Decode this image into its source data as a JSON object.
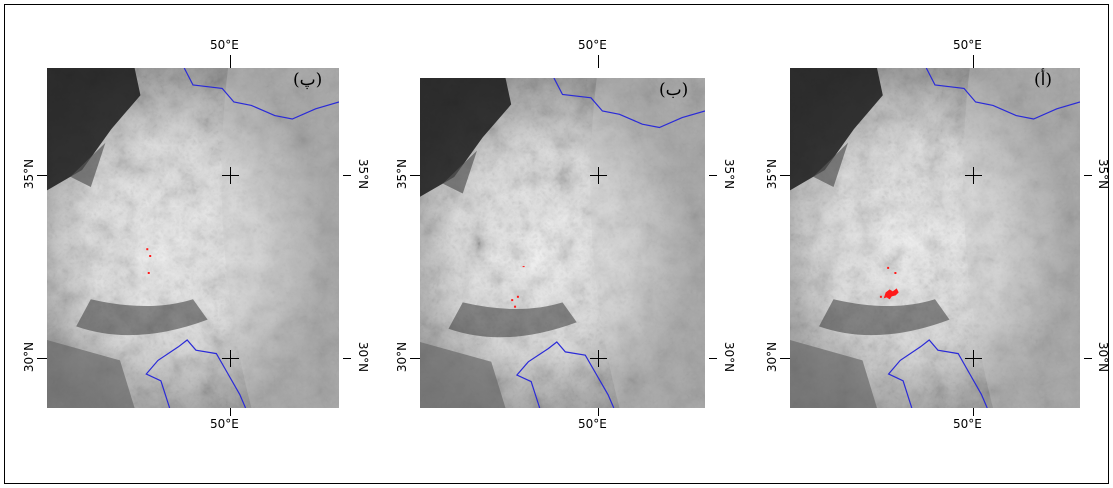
{
  "figure": {
    "panels": [
      {
        "id": "pe",
        "letter": "(پ)",
        "lon_top": "50°E",
        "lon_bottom": "50°E",
        "lat_left_35": "35°N",
        "lat_left_30": "30°N",
        "lat_right_35": "35°N",
        "lat_right_30": "30°N",
        "hotspots": "sparse"
      },
      {
        "id": "be",
        "letter": "(ب)",
        "lon_top": "50°E",
        "lon_bottom": "50°E",
        "lat_left_35": "35°N",
        "lat_left_30": "30°N",
        "lat_right_35": "35°N",
        "lat_right_30": "30°N",
        "hotspots": "few"
      },
      {
        "id": "alef",
        "letter": "(أ)",
        "lon_top": "50°E",
        "lon_bottom": "50°E",
        "lat_left_35": "35°N",
        "lat_left_30": "30°N",
        "lat_right_35": "35°N",
        "lat_right_30": "30°N",
        "hotspots": "cluster"
      }
    ]
  },
  "colors": {
    "boundary": "#2a2ad8",
    "hotspot": "#ff1a1a",
    "grid_cross": "#000000"
  }
}
